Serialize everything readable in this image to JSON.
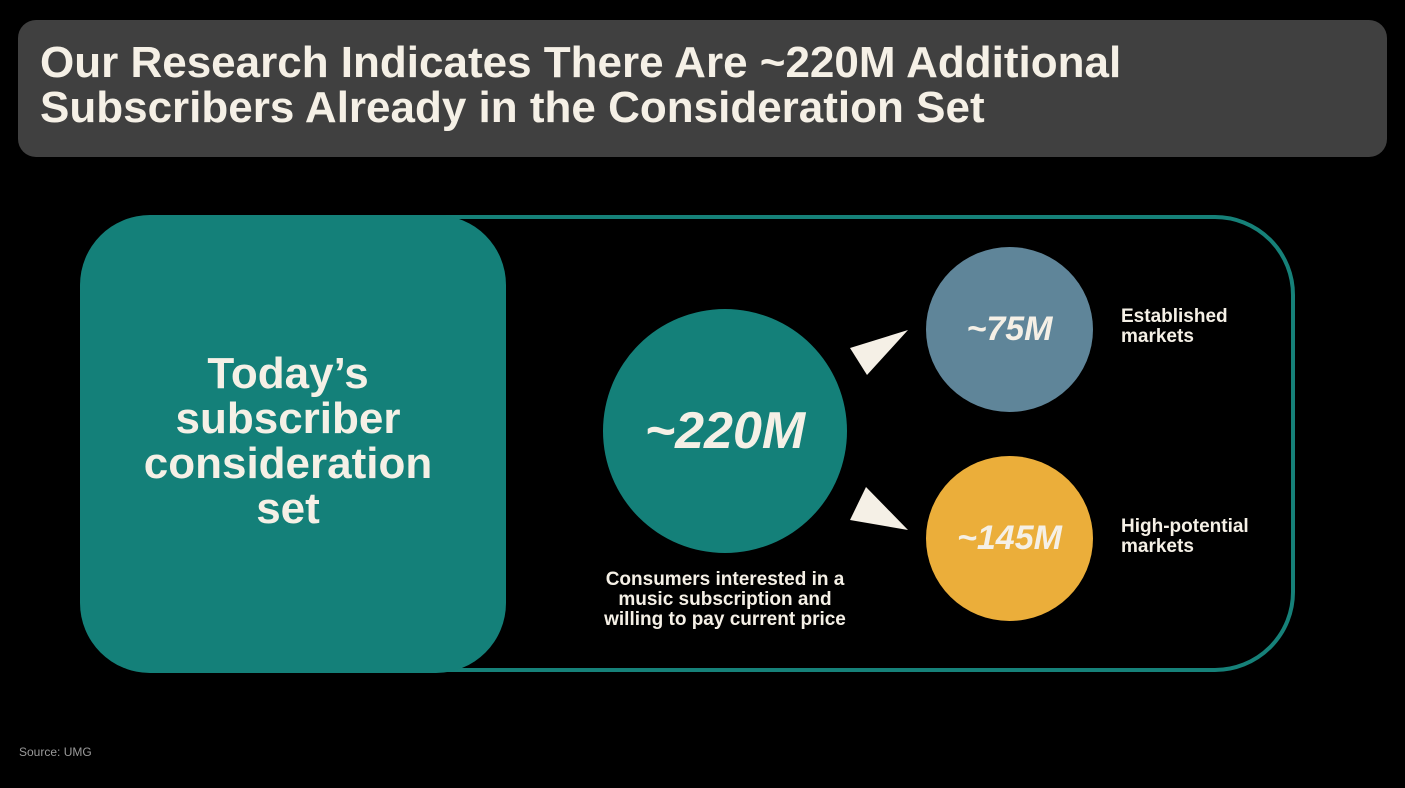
{
  "title": {
    "line1": "Our Research Indicates There Are ~220M Additional",
    "line2": "Subscribers Already in the Consideration Set"
  },
  "left_box": {
    "lines": [
      "Today’s",
      "subscriber",
      "consideration",
      "set"
    ]
  },
  "main_circle": {
    "value": "~220M",
    "caption_lines": [
      "Consumers interested in a",
      "music subscription and",
      "willing to pay current price"
    ]
  },
  "segments": [
    {
      "value": "~75M",
      "label_lines": [
        "Established",
        "markets"
      ],
      "color": "#5f8599"
    },
    {
      "value": "~145M",
      "label_lines": [
        "High-potential",
        "markets"
      ],
      "color": "#ebae3a"
    }
  ],
  "source": "Source: UMG",
  "colors": {
    "background": "#000000",
    "title_bar": "#404040",
    "teal": "#148079",
    "text": "#f5f0e6"
  }
}
